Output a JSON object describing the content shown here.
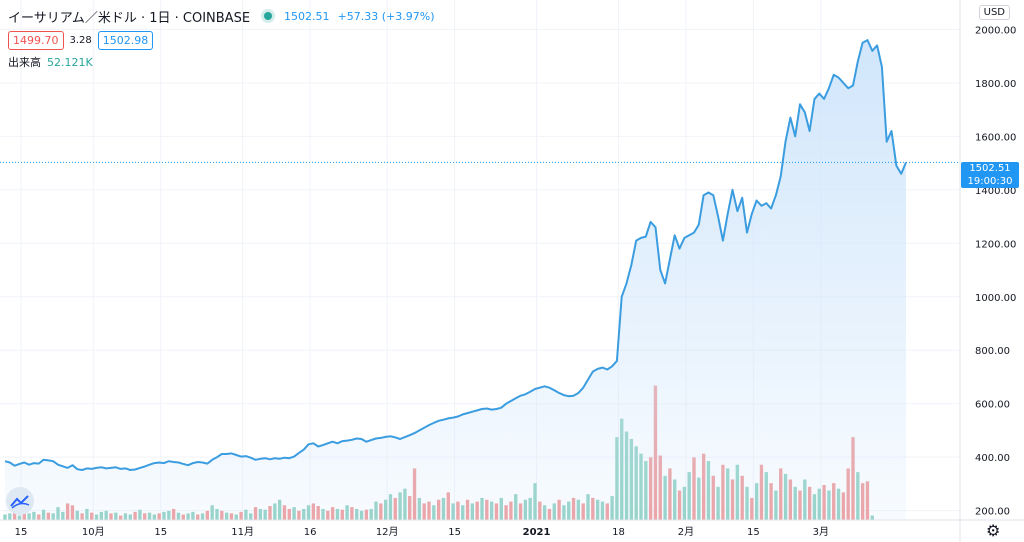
{
  "legend": {
    "symbol": "イーサリアム／米ドル · 1日 · COINBASE",
    "last_price": "1502.51",
    "change": "+57.33 (+3.97%)",
    "bid": "1499.70",
    "spread": "3.28",
    "ask": "1502.98",
    "volume_label": "出来高",
    "volume_value": "52.121K"
  },
  "currency": "USD",
  "price_tag": {
    "price": "1502.51",
    "countdown": "19:00:30"
  },
  "icons": {
    "logo": "tradingview-logo-icon",
    "live": "live-dot-icon",
    "settings": "gear-icon"
  },
  "colors": {
    "line": "#3b9de0",
    "area_top": "#cfe5fb",
    "vol_up": "#8fd1c3",
    "vol_down": "#ef9a9a",
    "accent": "#2196f3"
  },
  "chart_data": {
    "type": "area",
    "series": [
      {
        "values": [
          385,
          380,
          368,
          375,
          380,
          372,
          378,
          376,
          390,
          388,
          385,
          372,
          366,
          360,
          370,
          355,
          352,
          358,
          356,
          360,
          362,
          358,
          360,
          362,
          356,
          358,
          352,
          354,
          360,
          365,
          372,
          378,
          380,
          378,
          385,
          382,
          380,
          375,
          370,
          378,
          382,
          380,
          376,
          390,
          400,
          412,
          412,
          414,
          408,
          402,
          404,
          398,
          390,
          394,
          396,
          392,
          396,
          394,
          398,
          396,
          402,
          416,
          428,
          448,
          452,
          440,
          445,
          452,
          458,
          452,
          460,
          462,
          465,
          470,
          468,
          458,
          464,
          470,
          472,
          476,
          478,
          474,
          468,
          475,
          482,
          490,
          500,
          510,
          520,
          528,
          536,
          540,
          545,
          548,
          552,
          560,
          565,
          570,
          575,
          580,
          582,
          578,
          580,
          585,
          600,
          610,
          620,
          630,
          635,
          645,
          655,
          660,
          665,
          660,
          650,
          640,
          632,
          628,
          630,
          640,
          660,
          690,
          720,
          730,
          735,
          728,
          740,
          760,
          1000,
          1050,
          1120,
          1210,
          1220,
          1225,
          1280,
          1260,
          1100,
          1050,
          1140,
          1230,
          1180,
          1220,
          1230,
          1240,
          1270,
          1380,
          1390,
          1380,
          1300,
          1210,
          1310,
          1400,
          1320,
          1370,
          1240,
          1310,
          1360,
          1340,
          1350,
          1330,
          1380,
          1450,
          1580,
          1670,
          1600,
          1720,
          1690,
          1620,
          1740,
          1760,
          1740,
          1780,
          1830,
          1820,
          1800,
          1780,
          1790,
          1880,
          1950,
          1960,
          1920,
          1940,
          1860,
          1580,
          1620,
          1490,
          1460,
          1502.51
        ]
      }
    ],
    "volume": [
      {
        "v": 15,
        "up": true
      },
      {
        "v": 18,
        "up": true
      },
      {
        "v": 25,
        "up": false
      },
      {
        "v": 12,
        "up": true
      },
      {
        "v": 20,
        "up": false
      },
      {
        "v": 18,
        "up": true
      },
      {
        "v": 22,
        "up": true
      },
      {
        "v": 15,
        "up": false
      },
      {
        "v": 28,
        "up": true
      },
      {
        "v": 20,
        "up": false
      },
      {
        "v": 18,
        "up": true
      },
      {
        "v": 35,
        "up": true
      },
      {
        "v": 22,
        "up": true
      },
      {
        "v": 45,
        "up": false
      },
      {
        "v": 40,
        "up": false
      },
      {
        "v": 25,
        "up": true
      },
      {
        "v": 18,
        "up": false
      },
      {
        "v": 30,
        "up": true
      },
      {
        "v": 20,
        "up": false
      },
      {
        "v": 15,
        "up": true
      },
      {
        "v": 22,
        "up": true
      },
      {
        "v": 25,
        "up": true
      },
      {
        "v": 18,
        "up": false
      },
      {
        "v": 20,
        "up": true
      },
      {
        "v": 12,
        "up": false
      },
      {
        "v": 18,
        "up": true
      },
      {
        "v": 15,
        "up": true
      },
      {
        "v": 22,
        "up": false
      },
      {
        "v": 28,
        "up": true
      },
      {
        "v": 18,
        "up": false
      },
      {
        "v": 20,
        "up": true
      },
      {
        "v": 15,
        "up": true
      },
      {
        "v": 18,
        "up": false
      },
      {
        "v": 22,
        "up": true
      },
      {
        "v": 25,
        "up": true
      },
      {
        "v": 30,
        "up": false
      },
      {
        "v": 20,
        "up": true
      },
      {
        "v": 15,
        "up": false
      },
      {
        "v": 18,
        "up": true
      },
      {
        "v": 22,
        "up": true
      },
      {
        "v": 15,
        "up": false
      },
      {
        "v": 18,
        "up": true
      },
      {
        "v": 25,
        "up": false
      },
      {
        "v": 40,
        "up": true
      },
      {
        "v": 30,
        "up": true
      },
      {
        "v": 25,
        "up": false
      },
      {
        "v": 20,
        "up": true
      },
      {
        "v": 18,
        "up": false
      },
      {
        "v": 15,
        "up": true
      },
      {
        "v": 22,
        "up": false
      },
      {
        "v": 28,
        "up": true
      },
      {
        "v": 18,
        "up": true
      },
      {
        "v": 35,
        "up": false
      },
      {
        "v": 30,
        "up": true
      },
      {
        "v": 28,
        "up": true
      },
      {
        "v": 38,
        "up": false
      },
      {
        "v": 45,
        "up": true
      },
      {
        "v": 55,
        "up": true
      },
      {
        "v": 40,
        "up": false
      },
      {
        "v": 30,
        "up": false
      },
      {
        "v": 35,
        "up": true
      },
      {
        "v": 25,
        "up": false
      },
      {
        "v": 30,
        "up": true
      },
      {
        "v": 40,
        "up": true
      },
      {
        "v": 45,
        "up": false
      },
      {
        "v": 38,
        "up": false
      },
      {
        "v": 30,
        "up": true
      },
      {
        "v": 25,
        "up": false
      },
      {
        "v": 35,
        "up": false
      },
      {
        "v": 30,
        "up": true
      },
      {
        "v": 28,
        "up": false
      },
      {
        "v": 40,
        "up": true
      },
      {
        "v": 35,
        "up": false
      },
      {
        "v": 30,
        "up": true
      },
      {
        "v": 25,
        "up": true
      },
      {
        "v": 28,
        "up": false
      },
      {
        "v": 30,
        "up": true
      },
      {
        "v": 50,
        "up": true
      },
      {
        "v": 45,
        "up": false
      },
      {
        "v": 55,
        "up": true
      },
      {
        "v": 70,
        "up": true
      },
      {
        "v": 60,
        "up": false
      },
      {
        "v": 75,
        "up": true
      },
      {
        "v": 85,
        "up": true
      },
      {
        "v": 65,
        "up": false
      },
      {
        "v": 140,
        "up": false
      },
      {
        "v": 60,
        "up": true
      },
      {
        "v": 45,
        "up": false
      },
      {
        "v": 50,
        "up": false
      },
      {
        "v": 40,
        "up": true
      },
      {
        "v": 55,
        "up": false
      },
      {
        "v": 60,
        "up": true
      },
      {
        "v": 75,
        "up": false
      },
      {
        "v": 45,
        "up": true
      },
      {
        "v": 50,
        "up": false
      },
      {
        "v": 40,
        "up": true
      },
      {
        "v": 55,
        "up": false
      },
      {
        "v": 45,
        "up": true
      },
      {
        "v": 50,
        "up": false
      },
      {
        "v": 60,
        "up": true
      },
      {
        "v": 55,
        "up": false
      },
      {
        "v": 50,
        "up": true
      },
      {
        "v": 45,
        "up": false
      },
      {
        "v": 60,
        "up": true
      },
      {
        "v": 40,
        "up": false
      },
      {
        "v": 50,
        "up": false
      },
      {
        "v": 70,
        "up": true
      },
      {
        "v": 45,
        "up": false
      },
      {
        "v": 55,
        "up": true
      },
      {
        "v": 60,
        "up": true
      },
      {
        "v": 100,
        "up": true
      },
      {
        "v": 50,
        "up": false
      },
      {
        "v": 40,
        "up": true
      },
      {
        "v": 30,
        "up": false
      },
      {
        "v": 45,
        "up": true
      },
      {
        "v": 55,
        "up": false
      },
      {
        "v": 40,
        "up": true
      },
      {
        "v": 50,
        "up": true
      },
      {
        "v": 60,
        "up": false
      },
      {
        "v": 55,
        "up": true
      },
      {
        "v": 45,
        "up": false
      },
      {
        "v": 70,
        "up": true
      },
      {
        "v": 60,
        "up": false
      },
      {
        "v": 55,
        "up": true
      },
      {
        "v": 50,
        "up": true
      },
      {
        "v": 45,
        "up": false
      },
      {
        "v": 65,
        "up": true
      },
      {
        "v": 225,
        "up": true
      },
      {
        "v": 275,
        "up": true
      },
      {
        "v": 240,
        "up": true
      },
      {
        "v": 220,
        "up": true
      },
      {
        "v": 200,
        "up": true
      },
      {
        "v": 180,
        "up": true
      },
      {
        "v": 160,
        "up": true
      },
      {
        "v": 170,
        "up": false
      },
      {
        "v": 365,
        "up": false
      },
      {
        "v": 175,
        "up": false
      },
      {
        "v": 120,
        "up": true
      },
      {
        "v": 140,
        "up": false
      },
      {
        "v": 110,
        "up": true
      },
      {
        "v": 80,
        "up": false
      },
      {
        "v": 90,
        "up": true
      },
      {
        "v": 130,
        "up": true
      },
      {
        "v": 170,
        "up": false
      },
      {
        "v": 115,
        "up": true
      },
      {
        "v": 180,
        "up": false
      },
      {
        "v": 160,
        "up": true
      },
      {
        "v": 120,
        "up": false
      },
      {
        "v": 90,
        "up": true
      },
      {
        "v": 150,
        "up": false
      },
      {
        "v": 140,
        "up": true
      },
      {
        "v": 110,
        "up": false
      },
      {
        "v": 150,
        "up": true
      },
      {
        "v": 120,
        "up": false
      },
      {
        "v": 90,
        "up": true
      },
      {
        "v": 60,
        "up": false
      },
      {
        "v": 100,
        "up": true
      },
      {
        "v": 150,
        "up": false
      },
      {
        "v": 130,
        "up": true
      },
      {
        "v": 100,
        "up": false
      },
      {
        "v": 80,
        "up": true
      },
      {
        "v": 140,
        "up": false
      },
      {
        "v": 125,
        "up": true
      },
      {
        "v": 110,
        "up": false
      },
      {
        "v": 90,
        "up": true
      },
      {
        "v": 80,
        "up": false
      },
      {
        "v": 110,
        "up": true
      },
      {
        "v": 90,
        "up": false
      },
      {
        "v": 70,
        "up": true
      },
      {
        "v": 85,
        "up": true
      },
      {
        "v": 95,
        "up": false
      },
      {
        "v": 80,
        "up": true
      },
      {
        "v": 100,
        "up": false
      },
      {
        "v": 85,
        "up": true
      },
      {
        "v": 75,
        "up": false
      },
      {
        "v": 140,
        "up": false
      },
      {
        "v": 225,
        "up": false
      },
      {
        "v": 130,
        "up": true
      },
      {
        "v": 100,
        "up": false
      },
      {
        "v": 105,
        "up": false
      },
      {
        "v": 12,
        "up": true
      }
    ],
    "x_ticks": [
      {
        "label": "15",
        "i": 0
      },
      {
        "label": "10月",
        "i": 15
      },
      {
        "label": "15",
        "i": 29
      },
      {
        "label": "11月",
        "i": 46
      },
      {
        "label": "16",
        "i": 60
      },
      {
        "label": "12月",
        "i": 76
      },
      {
        "label": "15",
        "i": 90
      },
      {
        "label": "2021",
        "i": 107
      },
      {
        "label": "18",
        "i": 124
      },
      {
        "label": "2月",
        "i": 138
      },
      {
        "label": "15",
        "i": 152
      },
      {
        "label": "3月",
        "i": 166
      }
    ],
    "y_ticks": [
      200,
      400,
      600,
      800,
      1000,
      1200,
      1400,
      1600,
      1800,
      2000
    ],
    "ylim": [
      165,
      2080
    ],
    "grid": true,
    "scale": "linear",
    "last_price_line": 1502.51
  }
}
